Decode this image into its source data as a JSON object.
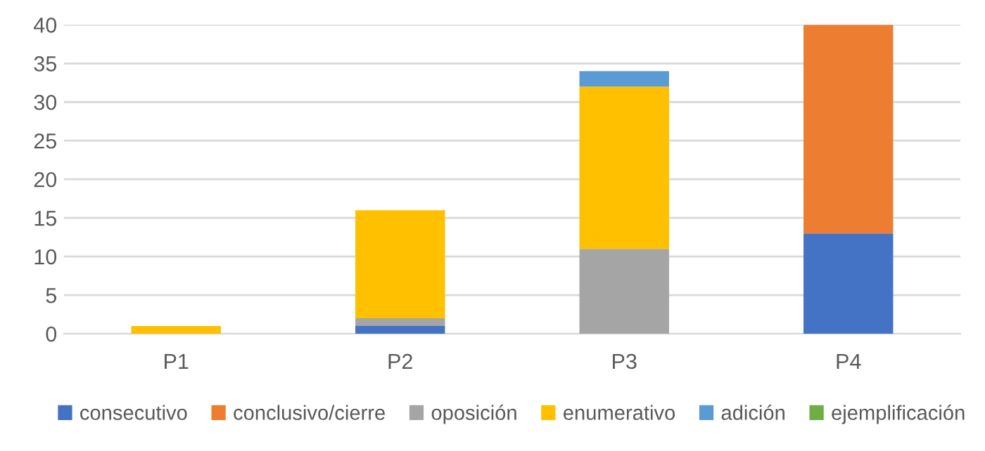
{
  "chart_data": {
    "type": "bar",
    "stacked": true,
    "categories": [
      "P1",
      "P2",
      "P3",
      "P4"
    ],
    "series": [
      {
        "name": "consecutivo",
        "color": "#4472c4",
        "values": [
          null,
          1,
          null,
          13
        ]
      },
      {
        "name": "conclusivo/cierre",
        "color": "#ed7d31",
        "values": [
          null,
          null,
          null,
          27
        ]
      },
      {
        "name": "oposición",
        "color": "#a5a5a5",
        "values": [
          null,
          1,
          11,
          null
        ]
      },
      {
        "name": "enumerativo",
        "color": "#ffc000",
        "values": [
          1,
          14,
          21,
          null
        ]
      },
      {
        "name": "adición",
        "color": "#5b9bd5",
        "values": [
          null,
          null,
          2,
          null
        ]
      },
      {
        "name": "ejemplificación",
        "color": "#70ad47",
        "values": [
          null,
          null,
          null,
          null
        ]
      }
    ],
    "ylim": [
      0,
      40
    ],
    "yticks": [
      0,
      5,
      10,
      15,
      20,
      25,
      30,
      35,
      40
    ],
    "grid": "y",
    "legend": "bottom"
  }
}
